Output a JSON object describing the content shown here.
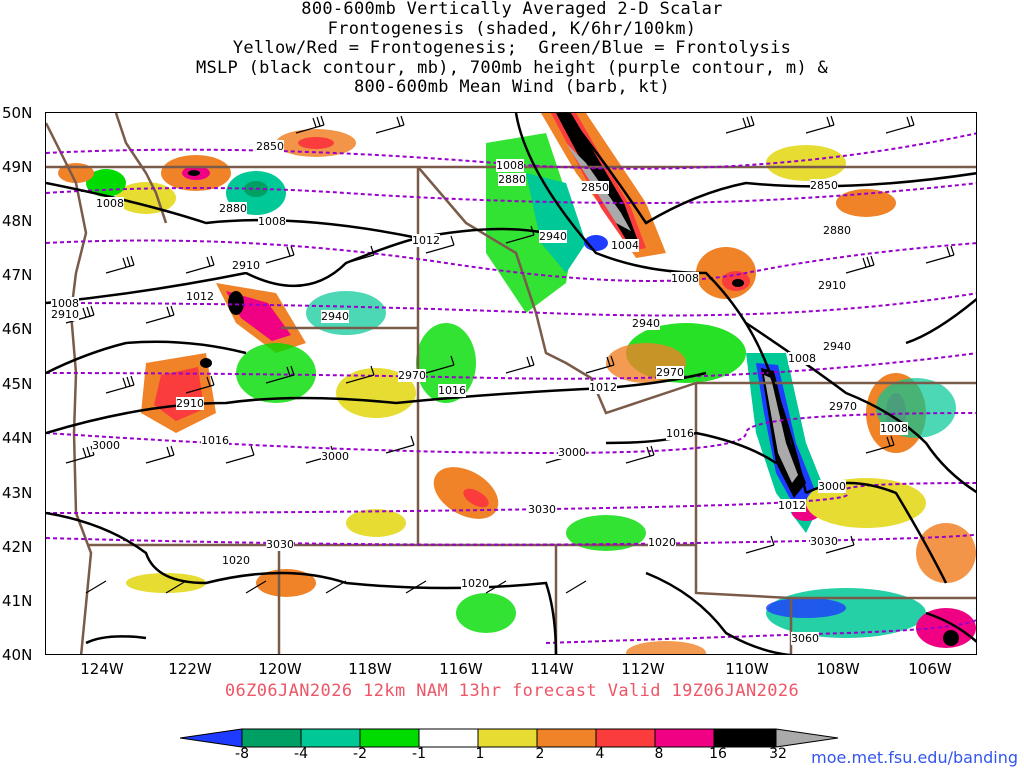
{
  "title": {
    "lines": [
      "800-600mb Vertically Averaged 2-D Scalar",
      "Frontogenesis (shaded, K/6hr/100km)",
      "Yellow/Red = Frontogenesis;  Green/Blue = Frontolysis",
      "MSLP (black contour, mb), 700mb height (purple contour, m) &",
      "800-600mb Mean Wind (barb, kt)"
    ]
  },
  "axes": {
    "latitudes": [
      "50N",
      "49N",
      "48N",
      "47N",
      "46N",
      "45N",
      "44N",
      "43N",
      "42N",
      "41N",
      "40N"
    ],
    "longitudes": [
      "124W",
      "122W",
      "120W",
      "118W",
      "116W",
      "114W",
      "112W",
      "110W",
      "108W",
      "106W"
    ]
  },
  "valid_line": "06Z06JAN2026 12km NAM 13hr forecast Valid 19Z06JAN2026",
  "colorbar": {
    "labels": [
      "-8",
      "-4",
      "-2",
      "-1",
      "1",
      "2",
      "4",
      "8",
      "16",
      "32"
    ],
    "colors": [
      "#1e3cff",
      "#00a064",
      "#00c896",
      "#00dc00",
      "#ffffff",
      "#e6dc32",
      "#f08228",
      "#fa3c3c",
      "#f00082",
      "#000000",
      "#aaaaaa"
    ]
  },
  "credit": "moe.met.fsu.edu/banding",
  "contour_labels": {
    "mslp": [
      "1008",
      "1008",
      "1008",
      "1004",
      "1008",
      "1012",
      "1012",
      "1012",
      "1016",
      "1016",
      "1016",
      "1008",
      "1012",
      "1008",
      "1008",
      "1020",
      "1020",
      "1020"
    ],
    "height": [
      "2850",
      "2880",
      "2850",
      "2880",
      "2850",
      "2880",
      "2910",
      "2940",
      "2910",
      "2910",
      "2940",
      "2940",
      "2970",
      "2970",
      "2970",
      "2940",
      "3000",
      "3000",
      "3000",
      "3000",
      "3030",
      "3030",
      "3030",
      "3060",
      "2910"
    ]
  },
  "colors": {
    "mslp": "#000000",
    "height": "#9900cc",
    "borders": "#7a5a48",
    "valid_text": "#ee5566",
    "credit_text": "#3355ee"
  }
}
